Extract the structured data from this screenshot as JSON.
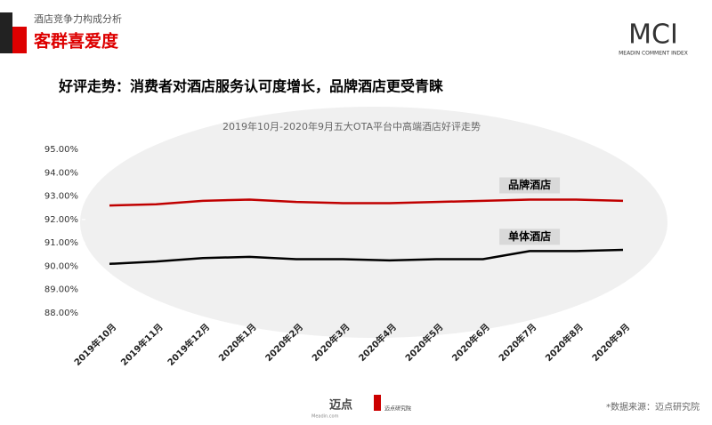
{
  "header": {
    "section": "酒店竞争力构成分析",
    "title": "客群喜爱度",
    "brand": "MCI",
    "brand_sub": "MEADIN COMMENT INDEX"
  },
  "headline": "好评走势：消费者对酒店服务认可度增长，品牌酒店更受青睐",
  "chart_data": {
    "type": "line",
    "title": "2019年10月-2020年9月五大OTA平台中高端酒店好评走势",
    "categories": [
      "2019年10月",
      "2019年11月",
      "2019年12月",
      "2020年1月",
      "2020年2月",
      "2020年3月",
      "2020年4月",
      "2020年5月",
      "2020年6月",
      "2020年7月",
      "2020年8月",
      "2020年9月"
    ],
    "series": [
      {
        "name": "品牌酒店",
        "color": "#c00000",
        "values": [
          92.6,
          92.65,
          92.8,
          92.85,
          92.75,
          92.7,
          92.7,
          92.75,
          92.8,
          92.85,
          92.85,
          92.8
        ]
      },
      {
        "name": "单体酒店",
        "color": "#000000",
        "values": [
          90.1,
          90.2,
          90.35,
          90.4,
          90.3,
          90.3,
          90.25,
          90.3,
          90.3,
          90.65,
          90.65,
          90.7
        ]
      }
    ],
    "ylim": [
      88,
      95
    ],
    "yticks": [
      {
        "value": 88,
        "label": "88.00%"
      },
      {
        "value": 89,
        "label": "89.00%"
      },
      {
        "value": 90,
        "label": "90.00%"
      },
      {
        "value": 91,
        "label": "91.00%"
      },
      {
        "value": 92,
        "label": "92.00%"
      },
      {
        "value": 93,
        "label": "93.00%"
      },
      {
        "value": 94,
        "label": "94.00%"
      },
      {
        "value": 95,
        "label": "95.00%"
      }
    ]
  },
  "footer": {
    "logo1": "迈点",
    "logo1_sub": "Meadin.com",
    "logo2": "迈点研究院",
    "source": "*数据来源：迈点研究院"
  }
}
